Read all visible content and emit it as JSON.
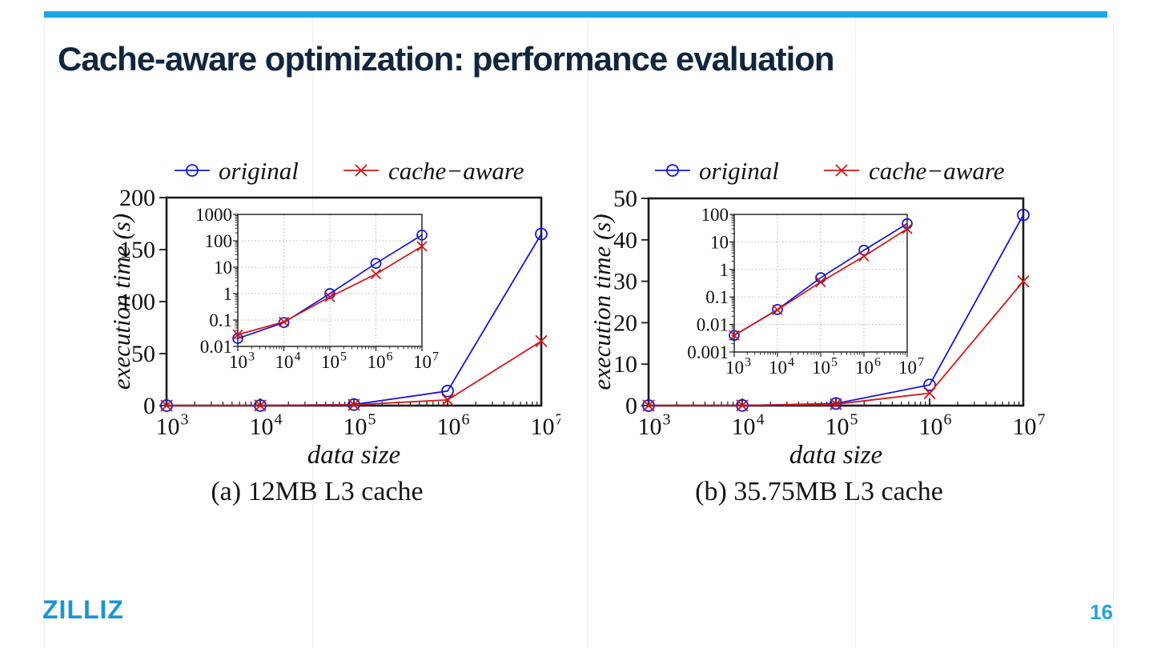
{
  "slide": {
    "title": "Cache-aware optimization: performance evaluation",
    "page_number": "16",
    "logo_text": "ZILLIZ",
    "accent_bar_color": "#1aa7e8",
    "title_color": "#10263e",
    "logo_color": "#1b94d5",
    "page_number_color": "#22a4e4"
  },
  "chart_data": [
    {
      "panel": "a",
      "type": "line",
      "caption": "(a) 12MB L3 cache",
      "xlabel": "data size",
      "ylabel": "execution time (s)",
      "x_scale": "log10",
      "x_exponents": [
        3,
        4,
        5,
        6,
        7
      ],
      "series": [
        {
          "name": "original",
          "color": "#1515d6",
          "marker": "circle",
          "values_seconds": [
            0.02,
            0.08,
            1.0,
            14,
            165
          ]
        },
        {
          "name": "cache−aware",
          "color": "#d61515",
          "marker": "cross",
          "values_seconds": [
            0.028,
            0.085,
            0.75,
            5.5,
            62
          ]
        }
      ],
      "main_axis": {
        "y_scale": "linear",
        "ylim": [
          0,
          200
        ],
        "yticks": [
          0,
          50,
          100,
          150,
          200
        ]
      },
      "inset_axis": {
        "y_scale": "log10",
        "y_exponent_range": [
          -2,
          3
        ],
        "ytick_labels": [
          "0.01",
          "0.1",
          "1",
          "10",
          "100",
          "1000"
        ],
        "grid": "dotted"
      }
    },
    {
      "panel": "b",
      "type": "line",
      "caption": "(b) 35.75MB L3 cache",
      "xlabel": "data size",
      "ylabel": "execution time (s)",
      "x_scale": "log10",
      "x_exponents": [
        3,
        4,
        5,
        6,
        7
      ],
      "series": [
        {
          "name": "original",
          "color": "#1515d6",
          "marker": "circle",
          "values_seconds": [
            0.004,
            0.035,
            0.5,
            5,
            46
          ]
        },
        {
          "name": "cache−aware",
          "color": "#d61515",
          "marker": "cross",
          "values_seconds": [
            0.004,
            0.034,
            0.35,
            3,
            30
          ]
        }
      ],
      "main_axis": {
        "y_scale": "linear",
        "ylim": [
          0,
          50
        ],
        "yticks": [
          0,
          10,
          20,
          30,
          40,
          50
        ]
      },
      "inset_axis": {
        "y_scale": "log10",
        "y_exponent_range": [
          -3,
          2
        ],
        "ytick_labels": [
          "0.001",
          "0.01",
          "0.1",
          "1",
          "10",
          "100"
        ],
        "grid": "dotted"
      }
    }
  ]
}
